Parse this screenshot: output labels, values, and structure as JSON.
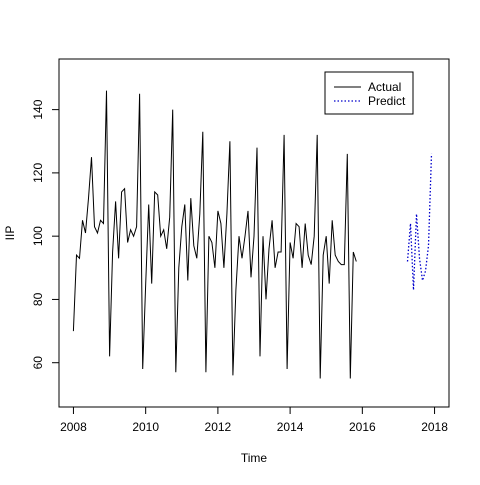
{
  "chart_data": {
    "type": "line",
    "xlabel": "Time",
    "ylabel": "IIP",
    "xlim": [
      2007.6,
      2018.4
    ],
    "ylim": [
      46,
      156
    ],
    "x_ticks": [
      2008,
      2010,
      2012,
      2014,
      2016,
      2018
    ],
    "x_tick_labels": [
      "2008",
      "2010",
      "2012",
      "2014",
      "2016",
      "2018"
    ],
    "y_ticks": [
      60,
      80,
      100,
      120,
      140
    ],
    "y_tick_labels": [
      "60",
      "80",
      "100",
      "120",
      "140"
    ],
    "grid": false,
    "legend_position": "top-right",
    "series": [
      {
        "name": "Actual",
        "color": "#000000",
        "style": "solid",
        "x_start": 2008.0,
        "x_step": 0.0833333,
        "values": [
          70,
          94,
          93,
          105,
          101,
          112,
          125,
          103,
          101,
          105,
          104,
          146,
          62,
          95,
          111,
          93,
          114,
          115,
          98,
          102,
          100,
          103,
          145,
          58,
          85,
          110,
          85,
          114,
          113,
          100,
          102,
          96,
          106,
          140,
          57,
          90,
          103,
          110,
          86,
          112,
          97,
          93,
          107,
          133,
          57,
          100,
          98,
          90,
          108,
          104,
          90,
          107,
          130,
          56,
          83,
          100,
          93,
          100,
          108,
          87,
          100,
          128,
          62,
          100,
          80,
          96,
          105,
          90,
          95,
          95,
          132,
          58,
          98,
          93,
          104,
          103,
          90,
          104,
          94,
          91,
          100,
          132,
          55,
          94,
          100,
          85,
          105,
          94,
          92,
          91,
          91,
          126,
          55,
          95,
          92
        ]
      },
      {
        "name": "Predict",
        "color": "#0000cc",
        "style": "dotted",
        "x_start": 2017.25,
        "x_step": 0.0833333,
        "values": [
          92,
          104,
          83,
          107,
          93,
          86,
          89,
          97,
          126
        ]
      }
    ]
  }
}
